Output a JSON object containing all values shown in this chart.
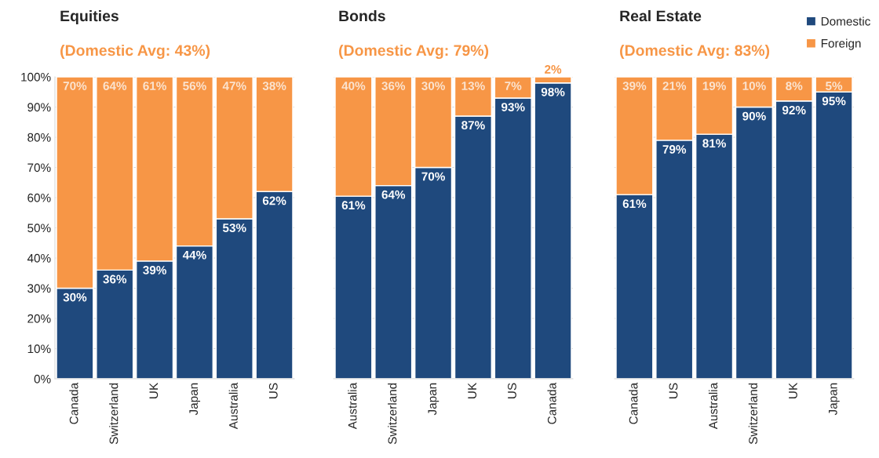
{
  "chart_data": [
    {
      "type": "bar",
      "stacked": true,
      "title": "Equities",
      "subtitle": "(Domestic Avg: 43%)",
      "categories": [
        "Canada",
        "Switzerland",
        "UK",
        "Japan",
        "Australia",
        "US"
      ],
      "series": [
        {
          "color": "#1f497d",
          "values": [
            30,
            36,
            39,
            44,
            53,
            62
          ],
          "value_labels": [
            "30%",
            "36%",
            "39%",
            "44%",
            "53%",
            "62%"
          ]
        },
        {
          "color": "#f79646",
          "values": [
            70,
            64,
            61,
            56,
            47,
            38
          ],
          "value_labels": [
            "70%",
            "64%",
            "61%",
            "56%",
            "47%",
            "38%"
          ]
        }
      ],
      "ylim": [
        0,
        100
      ],
      "yticks": [
        {
          "value": 0,
          "label": "0%"
        },
        {
          "value": 10,
          "label": "10%"
        },
        {
          "value": 20,
          "label": "20%"
        },
        {
          "value": 30,
          "label": "30%"
        },
        {
          "value": 40,
          "label": "40%"
        },
        {
          "value": 50,
          "label": "50%"
        },
        {
          "value": 60,
          "label": "60%"
        },
        {
          "value": 70,
          "label": "70%"
        },
        {
          "value": 80,
          "label": "80%"
        },
        {
          "value": 90,
          "label": "90%"
        },
        {
          "value": 100,
          "label": "100%"
        }
      ],
      "grid": "y",
      "legend": false
    },
    {
      "type": "bar",
      "stacked": true,
      "title": "Bonds",
      "subtitle": "(Domestic Avg: 79%)",
      "categories": [
        "Australia",
        "Switzerland",
        "Japan",
        "UK",
        "US",
        "Canada"
      ],
      "series": [
        {
          "color": "#1f497d",
          "values": [
            60.5,
            64,
            70,
            87,
            93,
            98
          ],
          "value_labels": [
            "61%",
            "64%",
            "70%",
            "87%",
            "93%",
            "98%"
          ]
        },
        {
          "color": "#f79646",
          "values": [
            39.5,
            36,
            30,
            13,
            7,
            2
          ],
          "value_labels": [
            "40%",
            "36%",
            "30%",
            "13%",
            "7%",
            "2%"
          ]
        }
      ],
      "ylim": [
        0,
        100
      ],
      "yticks": [
        {
          "value": 0,
          "label": null
        },
        {
          "value": 10,
          "label": null
        },
        {
          "value": 20,
          "label": null
        },
        {
          "value": 30,
          "label": null
        },
        {
          "value": 40,
          "label": null
        },
        {
          "value": 50,
          "label": null
        },
        {
          "value": 60,
          "label": null
        },
        {
          "value": 70,
          "label": null
        },
        {
          "value": 80,
          "label": null
        },
        {
          "value": 90,
          "label": null
        },
        {
          "value": 100,
          "label": null
        }
      ],
      "tick_labels": "x",
      "grid": "y"
    },
    {
      "type": "bar",
      "stacked": true,
      "title": "Real Estate",
      "subtitle": "(Domestic Avg: 83%)",
      "categories": [
        "Canada",
        "US",
        "Australia",
        "Switzerland",
        "UK",
        "Japan"
      ],
      "series": [
        {
          "name": "Domestic",
          "color": "#1f497d",
          "values": [
            61,
            79,
            81,
            90,
            92,
            95
          ],
          "value_labels": [
            "61%",
            "79%",
            "81%",
            "90%",
            "92%",
            "95%"
          ]
        },
        {
          "name": "Foreign",
          "color": "#f79646",
          "values": [
            39,
            21,
            19,
            10,
            8,
            5
          ],
          "value_labels": [
            "39%",
            "21%",
            "19%",
            "10%",
            "8%",
            "5%"
          ]
        }
      ],
      "ylim": [
        0,
        100
      ],
      "yticks": [
        {
          "value": 0,
          "label": null
        },
        {
          "value": 10,
          "label": null
        },
        {
          "value": 20,
          "label": null
        },
        {
          "value": 30,
          "label": null
        },
        {
          "value": 40,
          "label": null
        },
        {
          "value": 50,
          "label": null
        },
        {
          "value": 60,
          "label": null
        },
        {
          "value": 70,
          "label": null
        },
        {
          "value": 80,
          "label": null
        },
        {
          "value": 90,
          "label": null
        },
        {
          "value": 100,
          "label": null
        }
      ],
      "tick_labels": "x",
      "grid": "y",
      "legend": "top right"
    }
  ]
}
